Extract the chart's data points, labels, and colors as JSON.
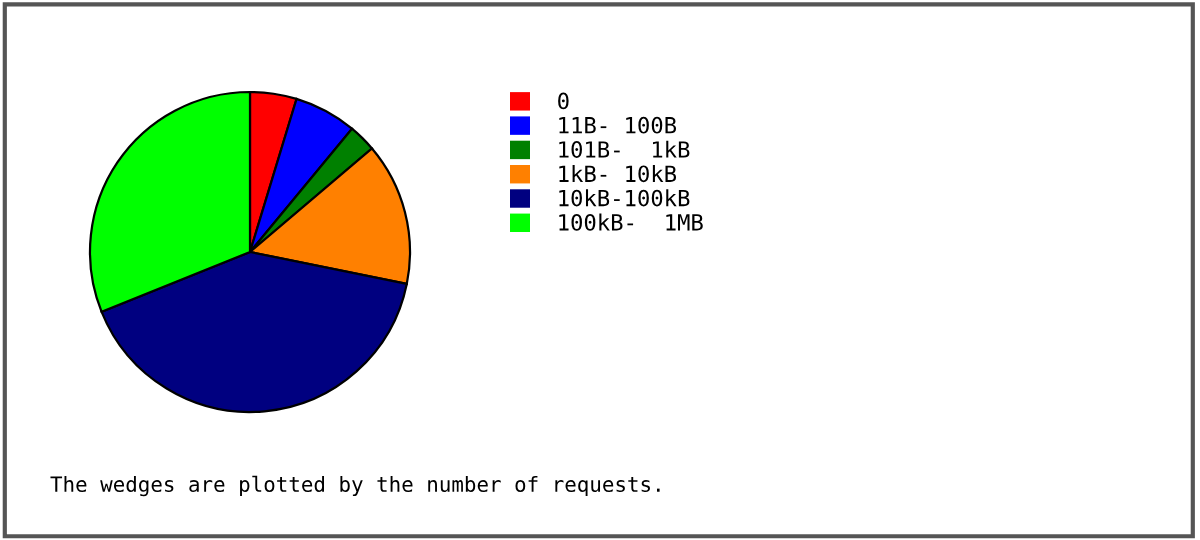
{
  "chart_data": {
    "type": "pie",
    "categories": [
      "0",
      "11B- 100B",
      "101B-  1kB",
      "1kB- 10kB",
      "10kB-100kB",
      "100kB-  1MB"
    ],
    "values": [
      4.7,
      6.3,
      2.8,
      14.4,
      40.7,
      31.1
    ],
    "colors": [
      "#ff0000",
      "#0000ff",
      "#008000",
      "#ff8000",
      "#000080",
      "#00ff00"
    ],
    "legend": "right",
    "annotations": [
      "The wedges are plotted by the number of requests."
    ]
  }
}
